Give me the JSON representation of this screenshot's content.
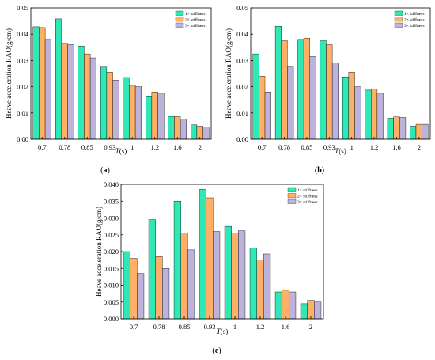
{
  "figure": {
    "panels": [
      {
        "label": "(a)",
        "label_letter": "a"
      },
      {
        "label": "(b)",
        "label_letter": "b"
      },
      {
        "label": "(c)",
        "label_letter": "c"
      }
    ]
  },
  "colors": {
    "series": [
      "#2ee8b6",
      "#ffb066",
      "#bdb3da"
    ],
    "stroke": "#000000"
  },
  "chart_data": [
    {
      "type": "bar",
      "panel": "(a)",
      "xlabel": "T(s)",
      "ylabel": "Heave acceleration RAO(g/cm)",
      "categories": [
        "0.7",
        "0.78",
        "0.85",
        "0.93",
        "1",
        "1.2",
        "1.6",
        "2"
      ],
      "ylim": [
        0,
        0.05
      ],
      "yticks": [
        "0.00",
        "0.01",
        "0.02",
        "0.03",
        "0.04",
        "0.05"
      ],
      "legend_position": "top-right",
      "series": [
        {
          "name": "1× stiffness",
          "values": [
            0.0428,
            0.0458,
            0.0355,
            0.0275,
            0.0235,
            0.0165,
            0.0087,
            0.0055
          ]
        },
        {
          "name": "2× stiffness",
          "values": [
            0.0425,
            0.0365,
            0.0325,
            0.0255,
            0.0205,
            0.018,
            0.0086,
            0.005
          ]
        },
        {
          "name": "3× stiffness",
          "values": [
            0.038,
            0.036,
            0.031,
            0.0225,
            0.02,
            0.0175,
            0.0077,
            0.0047
          ]
        }
      ]
    },
    {
      "type": "bar",
      "panel": "(b)",
      "xlabel": "T(s)",
      "ylabel": "Heave acceleration RAO(g/cm)",
      "categories": [
        "0.7",
        "0.78",
        "0.85",
        "0.93",
        "1",
        "1.2",
        "1.6",
        "2"
      ],
      "ylim": [
        0,
        0.05
      ],
      "yticks": [
        "0.00",
        "0.01",
        "0.02",
        "0.03",
        "0.04",
        "0.05"
      ],
      "legend_position": "top-right",
      "series": [
        {
          "name": "1× stiffness",
          "values": [
            0.0325,
            0.043,
            0.038,
            0.0375,
            0.0237,
            0.0187,
            0.008,
            0.005
          ]
        },
        {
          "name": "2× stiffness",
          "values": [
            0.024,
            0.0375,
            0.0385,
            0.036,
            0.0255,
            0.0192,
            0.0085,
            0.0057
          ]
        },
        {
          "name": "3× stiffness",
          "values": [
            0.018,
            0.0275,
            0.0315,
            0.029,
            0.02,
            0.0175,
            0.0083,
            0.0057
          ]
        }
      ]
    },
    {
      "type": "bar",
      "panel": "(c)",
      "xlabel": "T(s)",
      "ylabel": "Heave acceleration RAO(g/cm)",
      "categories": [
        "0.7",
        "0.78",
        "0.85",
        "0.93",
        "1",
        "1.2",
        "1.6",
        "2"
      ],
      "ylim": [
        0,
        0.04
      ],
      "yticks": [
        "0.000",
        "0.005",
        "0.010",
        "0.015",
        "0.020",
        "0.025",
        "0.030",
        "0.035",
        "0.040"
      ],
      "legend_position": "top-right",
      "series": [
        {
          "name": "1× stiffness",
          "values": [
            0.02,
            0.0295,
            0.035,
            0.0385,
            0.0275,
            0.021,
            0.008,
            0.0045
          ]
        },
        {
          "name": "2× stiffness",
          "values": [
            0.018,
            0.0185,
            0.0255,
            0.036,
            0.0255,
            0.0175,
            0.0085,
            0.0055
          ]
        },
        {
          "name": "3× stiffness",
          "values": [
            0.0135,
            0.015,
            0.0205,
            0.026,
            0.0262,
            0.0193,
            0.008,
            0.005
          ]
        }
      ]
    }
  ]
}
